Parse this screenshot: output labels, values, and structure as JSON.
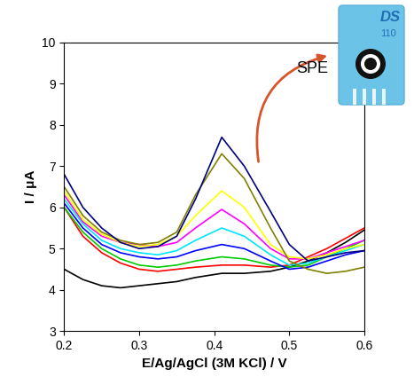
{
  "chart_data": {
    "type": "line",
    "x_label": "E/Ag/AgCl (3M KCl) / V",
    "y_label": "I / μA",
    "annotations": [
      "SPE",
      "DS",
      "110"
    ],
    "x": [
      0.2,
      0.225,
      0.25,
      0.275,
      0.3,
      0.325,
      0.35,
      0.375,
      0.41,
      0.44,
      0.475,
      0.5,
      0.525,
      0.55,
      0.575,
      0.6
    ],
    "series": [
      {
        "color": "#000000",
        "values": [
          4.5,
          4.25,
          4.1,
          4.05,
          4.1,
          4.15,
          4.2,
          4.3,
          4.4,
          4.4,
          4.45,
          4.55,
          4.7,
          4.9,
          5.15,
          5.45
        ]
      },
      {
        "color": "#ff0000",
        "values": [
          6.0,
          5.3,
          4.9,
          4.65,
          4.5,
          4.45,
          4.5,
          4.55,
          4.6,
          4.6,
          4.55,
          4.6,
          4.8,
          5.0,
          5.25,
          5.5
        ]
      },
      {
        "color": "#00cc00",
        "values": [
          6.0,
          5.4,
          5.0,
          4.75,
          4.6,
          4.55,
          4.6,
          4.7,
          4.8,
          4.75,
          4.6,
          4.55,
          4.6,
          4.8,
          5.0,
          5.2
        ]
      },
      {
        "color": "#0000ff",
        "values": [
          6.1,
          5.5,
          5.1,
          4.9,
          4.8,
          4.75,
          4.8,
          4.95,
          5.1,
          5.0,
          4.7,
          4.5,
          4.55,
          4.7,
          4.85,
          4.95
        ]
      },
      {
        "color": "#00e5ff",
        "values": [
          6.2,
          5.6,
          5.2,
          5.0,
          4.9,
          4.85,
          4.95,
          5.2,
          5.5,
          5.3,
          4.85,
          4.6,
          4.65,
          4.8,
          4.95,
          5.1
        ]
      },
      {
        "color": "#ff00ff",
        "values": [
          6.3,
          5.65,
          5.3,
          5.15,
          5.1,
          5.05,
          5.15,
          5.5,
          5.95,
          5.6,
          5.0,
          4.75,
          4.75,
          4.9,
          5.05,
          5.2
        ]
      },
      {
        "color": "#ffff00",
        "values": [
          6.4,
          5.7,
          5.35,
          5.15,
          5.05,
          5.1,
          5.3,
          5.8,
          6.4,
          6.0,
          5.1,
          4.8,
          4.75,
          4.85,
          5.0,
          5.1
        ]
      },
      {
        "color": "#808000",
        "values": [
          6.5,
          5.8,
          5.4,
          5.2,
          5.1,
          5.15,
          5.4,
          6.3,
          7.3,
          6.7,
          5.5,
          4.7,
          4.5,
          4.4,
          4.45,
          4.55
        ]
      },
      {
        "color": "#000080",
        "values": [
          6.8,
          6.0,
          5.5,
          5.15,
          5.0,
          5.05,
          5.3,
          6.2,
          7.7,
          7.0,
          5.9,
          5.1,
          4.7,
          4.8,
          4.9,
          4.95
        ]
      }
    ],
    "xlim": [
      0.2,
      0.6
    ],
    "xticks": [
      0.2,
      0.3,
      0.4,
      0.5,
      0.6
    ],
    "ylim": [
      3,
      10
    ],
    "yticks": [
      3,
      4,
      5,
      6,
      7,
      8,
      9,
      10
    ],
    "grid": false
  }
}
